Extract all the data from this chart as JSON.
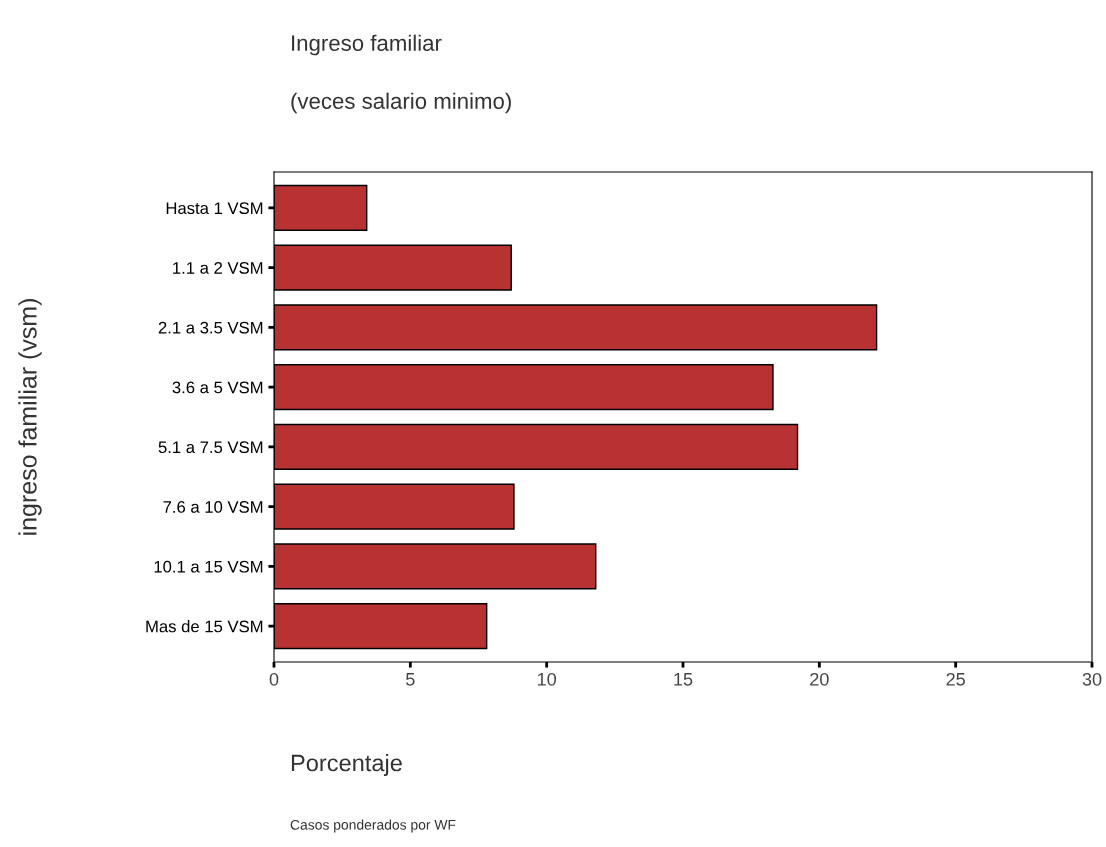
{
  "chart_data": {
    "type": "bar",
    "orientation": "horizontal",
    "title": "Ingreso familiar",
    "subtitle": "(veces salario minimo)",
    "xlabel": "Porcentaje",
    "ylabel": "ingreso familiar (vsm)",
    "categories": [
      "Hasta 1 VSM",
      "1.1 a 2 VSM",
      "2.1 a 3.5 VSM",
      "3.6 a 5 VSM",
      "5.1 a 7.5 VSM",
      "7.6 a 10 VSM",
      "10.1 a 15 VSM",
      "Mas de 15 VSM"
    ],
    "values": [
      3.4,
      8.7,
      22.1,
      18.3,
      19.2,
      8.8,
      11.8,
      7.8
    ],
    "color": "#b83232",
    "xlim": [
      0,
      30
    ],
    "xticks": [
      0,
      5,
      10,
      15,
      20,
      25,
      30
    ],
    "grid": false,
    "annotations": [
      "Casos ponderados por WF"
    ]
  }
}
